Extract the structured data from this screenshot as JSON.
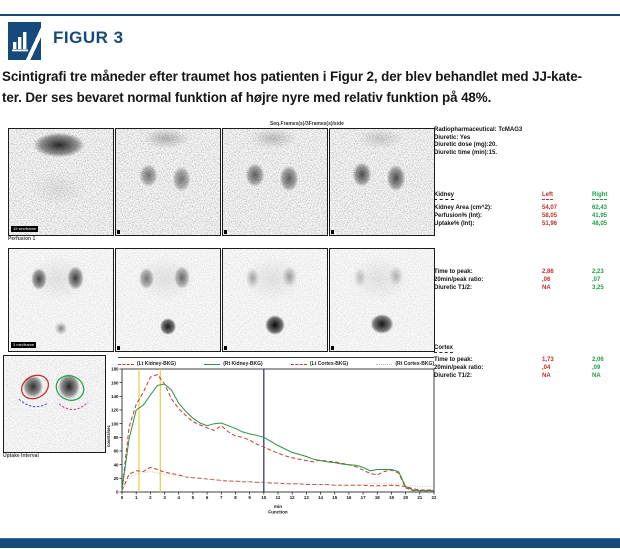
{
  "header": {
    "title": "FIGUR 3",
    "icon": "bar-chart-icon",
    "accent_color": "#174a7c"
  },
  "caption": {
    "line1": "Scintigrafi tre måneder efter traumet hos patienten i Figur 2, der blev behandlet med JJ-kate-",
    "line2": "ter. Der ses bevaret normal funktion af højre nyre med relativ funktion på 48%."
  },
  "colors": {
    "navy": "#174a7c",
    "left_red": "#c22d27",
    "right_green": "#1e9e44",
    "marker_yellow": "#e6cf3a",
    "marker_navy": "#232a70"
  },
  "scan_area": {
    "seq_label": "Seq.Frames(s)/3Frames(s)/side",
    "row1_caption": "Perfusion 1",
    "row1_frame_label": "15 sec/frame",
    "row2_frame_label": "3 min/frame",
    "roi_caption": "Uptake Interval"
  },
  "info_panel": {
    "lines": [
      "Radiopharmaceutical: TcMAG3",
      "Diuretic: Yes",
      "Diuretic dose (mg):20.",
      "Diuretic time (min):15."
    ]
  },
  "kidney_table": {
    "title": "Kidney",
    "col_left": "Left",
    "col_right": "Right",
    "rows": [
      {
        "label": "Kidney Area (cm^2):",
        "left": "54,07",
        "right": "62,43"
      },
      {
        "label": "Perfusion% (Int):",
        "left": "58,05",
        "right": "41,95"
      },
      {
        "label": "Uptake% (Int):",
        "left": "51,96",
        "right": "48,05"
      }
    ]
  },
  "kidney_timing": {
    "rows": [
      {
        "label": "Time to peak:",
        "left": "2,86",
        "right": "2,23"
      },
      {
        "label": "20min/peak ratio:",
        "left": ",06",
        "right": ",07"
      },
      {
        "label": "Diuretic T1/2:",
        "left": "NA",
        "right": "3,25"
      }
    ]
  },
  "cortex": {
    "title": "Cortex",
    "rows": [
      {
        "label": "Time to peak:",
        "left": "1,73",
        "right": "2,06"
      },
      {
        "label": "20min/peak ratio:",
        "left": ",04",
        "right": ",09"
      },
      {
        "label": "Diuretic T1/2:",
        "left": "NA",
        "right": "NA"
      }
    ]
  },
  "chart_data": {
    "type": "line",
    "title": "",
    "ylabel": "counts/sec",
    "xlabel_line1": "min",
    "xlabel_line2": "Function",
    "xlim": [
      0,
      22
    ],
    "ylim": [
      0,
      180
    ],
    "x_ticks_step": 1,
    "y_ticks_step": 20,
    "grid": false,
    "legend_position": "top",
    "markers": [
      {
        "name": "uptake-interval-start",
        "x": 1.2,
        "color": "#e6cf3a"
      },
      {
        "name": "uptake-interval-end",
        "x": 2.7,
        "color": "#e6cf3a"
      },
      {
        "name": "ten-minute-marker",
        "x": 10,
        "color": "#232a70"
      }
    ],
    "x": [
      0,
      0.5,
      1,
      1.5,
      2,
      2.5,
      3,
      3.5,
      4,
      4.5,
      5,
      5.5,
      6,
      6.5,
      7,
      7.5,
      8,
      8.5,
      9,
      9.5,
      10,
      10.5,
      11,
      11.5,
      12,
      12.5,
      13,
      13.5,
      14,
      14.5,
      15,
      15.5,
      16,
      16.5,
      17,
      17.5,
      18,
      18.5,
      19,
      19.5,
      20,
      20.5,
      21,
      21.5,
      22
    ],
    "series": [
      {
        "name": "(Lt Kidney-BKG)",
        "color": "#c43b2e",
        "style": "dashed",
        "values": [
          3,
          95,
          128,
          146,
          168,
          172,
          158,
          136,
          122,
          112,
          103,
          98,
          94,
          90,
          97,
          88,
          82,
          80,
          76,
          70,
          66,
          61,
          57,
          53,
          50,
          48,
          46,
          44,
          47,
          45,
          44,
          42,
          40,
          37,
          32,
          27,
          25,
          30,
          32,
          28,
          6,
          2,
          2,
          2,
          2
        ]
      },
      {
        "name": "(Rt Kidney-BKG)",
        "color": "#2e9146",
        "style": "solid",
        "values": [
          3,
          78,
          120,
          127,
          142,
          156,
          158,
          149,
          130,
          118,
          108,
          101,
          97,
          100,
          101,
          97,
          93,
          88,
          85,
          83,
          80,
          74,
          68,
          63,
          58,
          55,
          52,
          48,
          46,
          44,
          43,
          41,
          40,
          39,
          36,
          31,
          33,
          33,
          33,
          30,
          8,
          3,
          2,
          2,
          2
        ]
      },
      {
        "name": "(Lt Cortex-BKG)",
        "color": "#c43b2e",
        "style": "dashed",
        "values": [
          2,
          26,
          31,
          30,
          36,
          33,
          29,
          27,
          25,
          22,
          21,
          20,
          19,
          18,
          17,
          16,
          16,
          15,
          15,
          14,
          14,
          13,
          13,
          12,
          12,
          12,
          11,
          11,
          11,
          11,
          10,
          10,
          10,
          10,
          10,
          9,
          9,
          9,
          10,
          9,
          8,
          5,
          3,
          3,
          3
        ]
      },
      {
        "name": "(Rt Cortex-BKG)",
        "color": "#b9b9b9",
        "style": "dotted",
        "values": [
          2,
          20,
          26,
          28,
          30,
          28,
          26,
          25,
          23,
          22,
          21,
          20,
          19,
          18,
          17,
          17,
          16,
          15,
          15,
          14,
          14,
          14,
          13,
          13,
          12,
          12,
          12,
          11,
          11,
          11,
          10,
          10,
          10,
          10,
          11,
          12,
          13,
          13,
          12,
          12,
          10,
          9,
          8,
          8,
          8
        ]
      }
    ]
  }
}
